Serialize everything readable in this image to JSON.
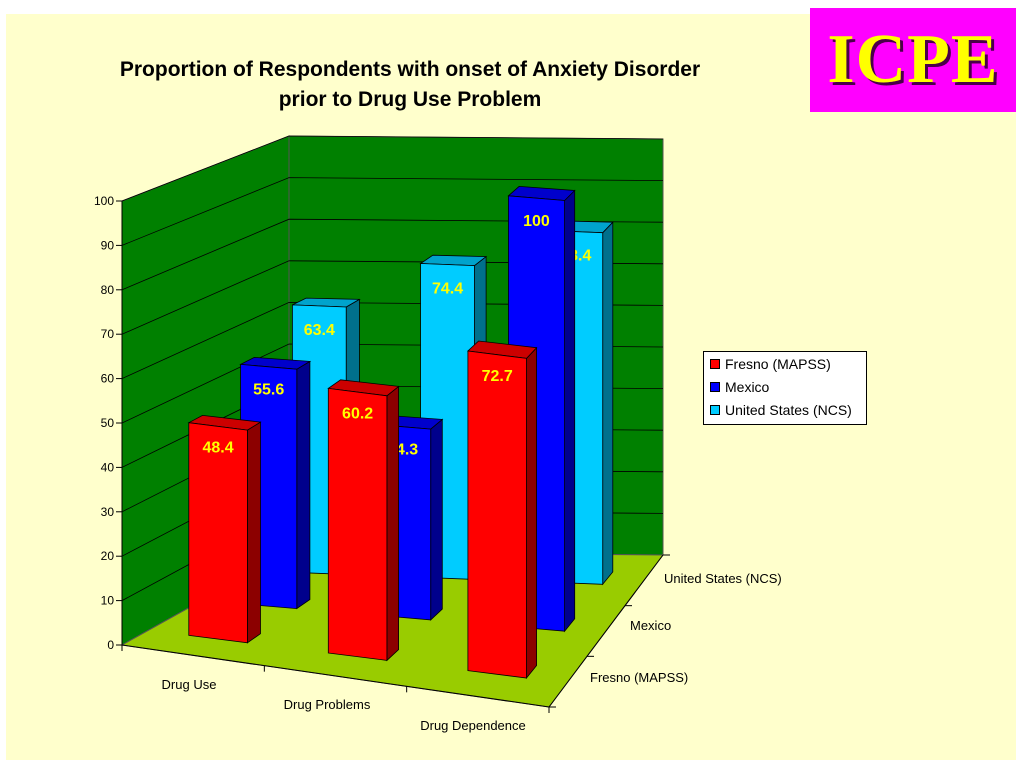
{
  "logo": {
    "text": "ICPE"
  },
  "chart_data": {
    "type": "bar",
    "title": "Proportion of Respondents with onset of Anxiety Disorder prior to Drug Use Problem",
    "title_lines": [
      "Proportion of Respondents with onset of Anxiety Disorder",
      "prior to Drug Use Problem"
    ],
    "categories": [
      "Drug Use",
      "Drug Problems",
      "Drug Dependence"
    ],
    "series": [
      {
        "name": "Fresno (MAPSS)",
        "values": [
          48.4,
          60.2,
          72.7
        ],
        "color": "#ff0000"
      },
      {
        "name": "Mexico",
        "values": [
          55.6,
          44.3,
          100
        ],
        "color": "#0000ff"
      },
      {
        "name": "United States (NCS)",
        "values": [
          63.4,
          74.4,
          83.4
        ],
        "color": "#00ccff"
      }
    ],
    "depth_labels": [
      "United States (NCS)",
      "Mexico",
      "Fresno (MAPSS)"
    ],
    "y_ticks": [
      "0",
      "10",
      "20",
      "30",
      "40",
      "50",
      "60",
      "70",
      "80",
      "90",
      "100"
    ],
    "ylim": [
      0,
      100
    ],
    "grid": true,
    "legend_position": "right",
    "colors": {
      "wall": "#008000",
      "floor": "#99cc00",
      "background": "#ffffcc",
      "label_on_red": "#ffff00",
      "label_on_blue": "#ffff00",
      "label_on_cyan": "#ffff00"
    }
  }
}
